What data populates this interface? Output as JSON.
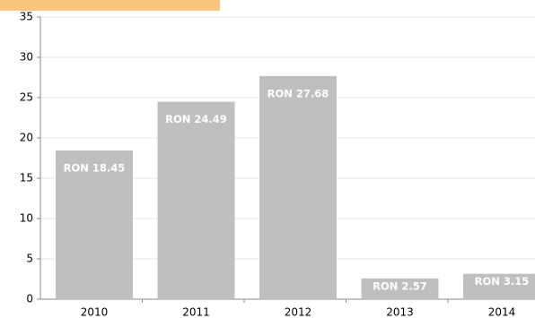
{
  "chart_data": {
    "type": "bar",
    "categories": [
      "2010",
      "2011",
      "2012",
      "2013",
      "2014"
    ],
    "values": [
      18.45,
      24.49,
      27.68,
      2.57,
      3.15
    ],
    "value_labels": [
      "RON 18.45",
      "RON 24.49",
      "RON 27.68",
      "RON 2.57",
      "RON 3.15"
    ],
    "color": "#bfbfbf",
    "ylim": [
      0,
      35
    ],
    "yticks": [
      0,
      5,
      10,
      15,
      20,
      25,
      30,
      35
    ],
    "grid": true
  }
}
